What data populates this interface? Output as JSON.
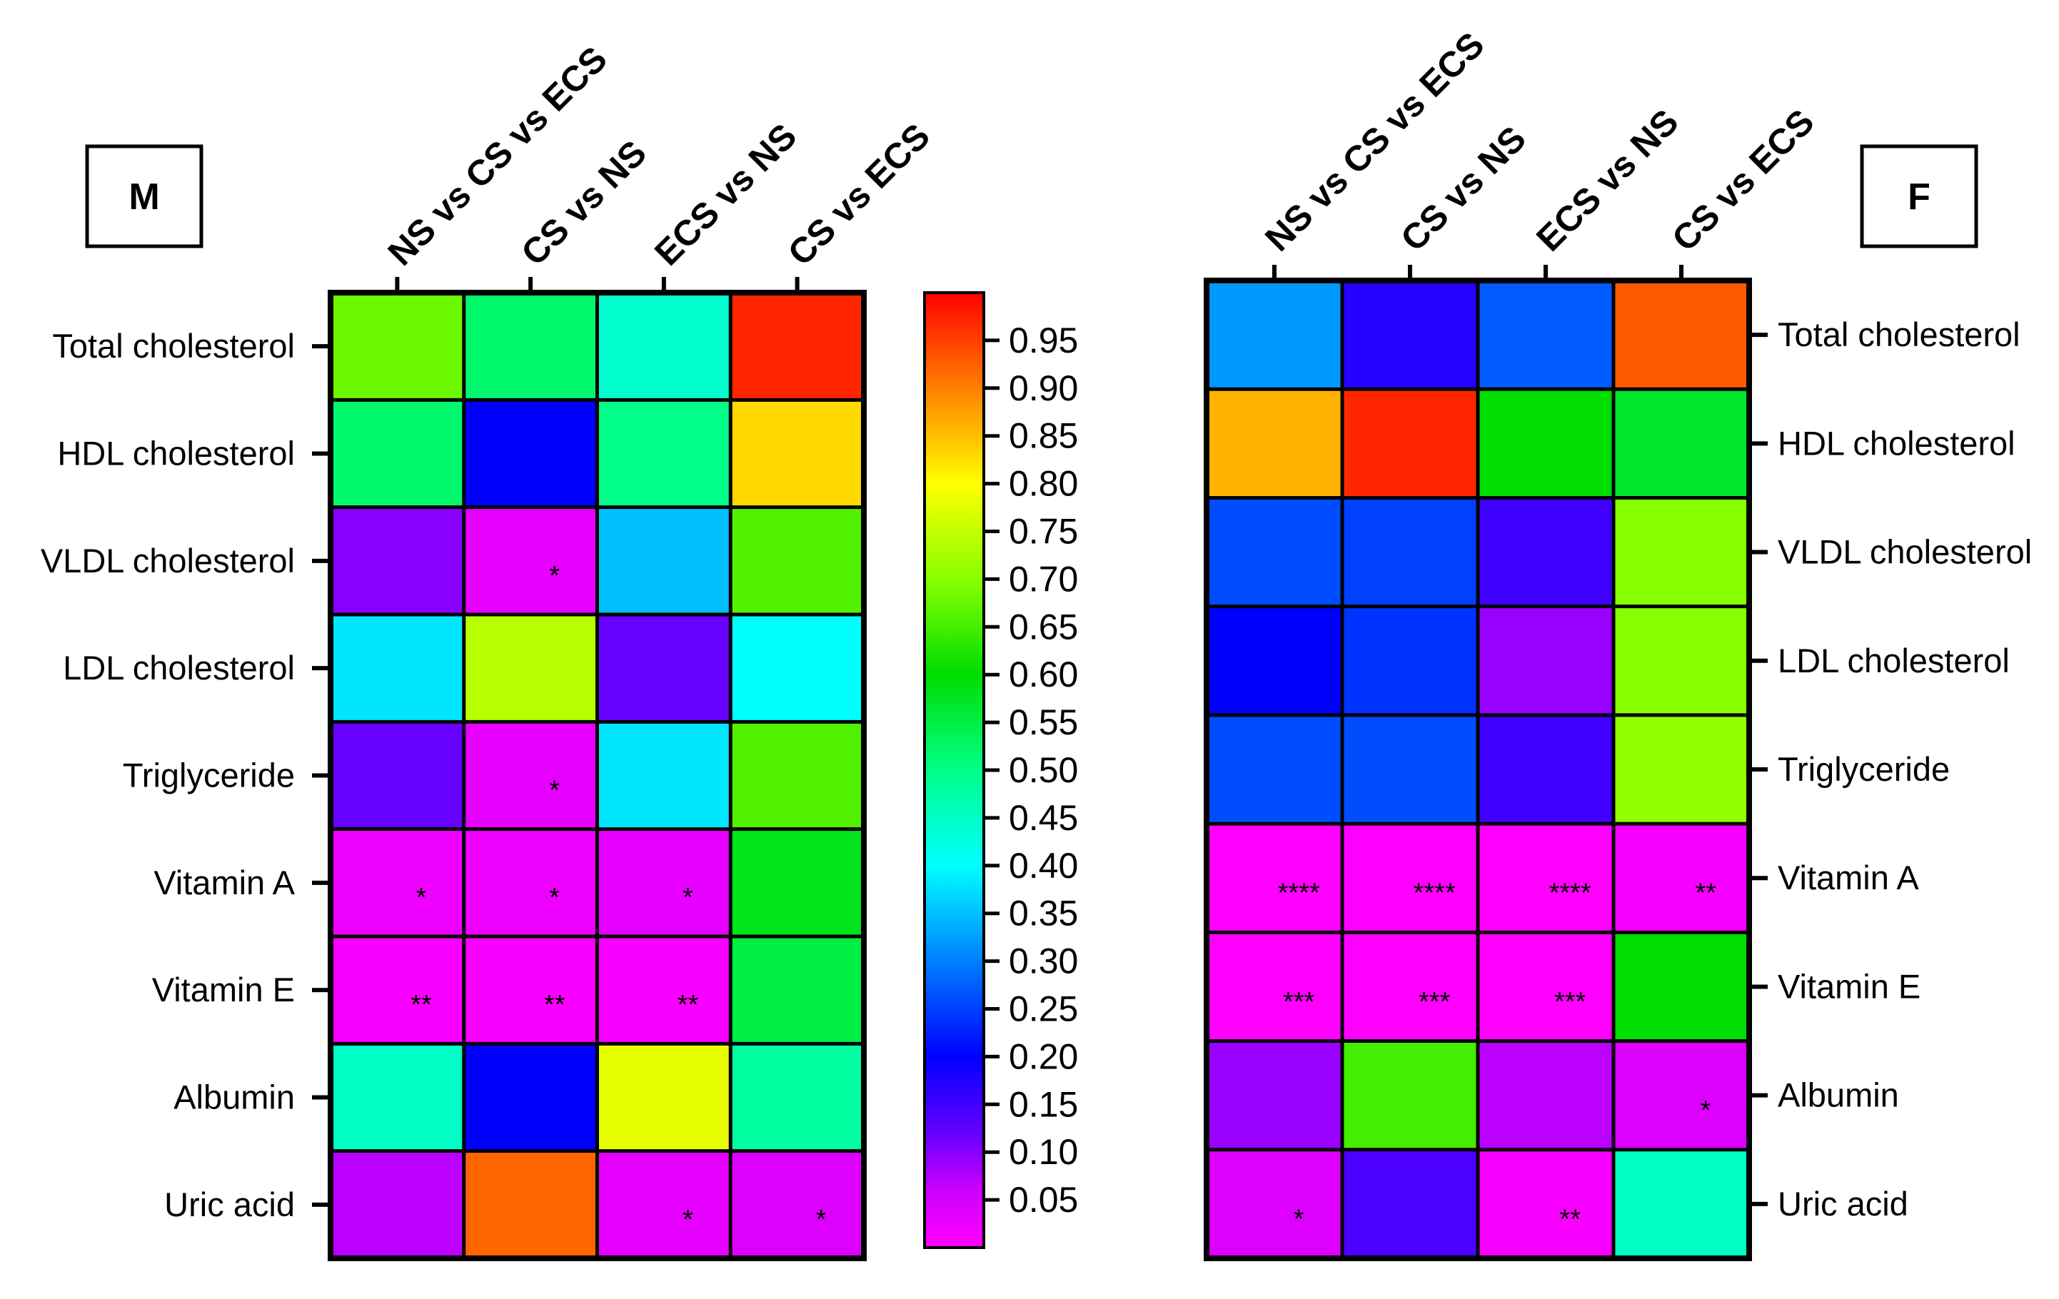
{
  "chart_data": [
    {
      "type": "heatmap",
      "panel_label": "M",
      "columns": [
        "NS vs CS vs ECS",
        "CS vs NS",
        "ECS vs NS",
        "CS vs ECS"
      ],
      "rows": [
        "Total cholesterol",
        "HDL cholesterol",
        "VLDL cholesterol",
        "LDL cholesterol",
        "Triglyceride",
        "Vitamin A",
        "Vitamin E",
        "Albumin",
        "Uric acid"
      ],
      "values": [
        [
          0.68,
          0.52,
          0.44,
          0.97
        ],
        [
          0.52,
          0.2,
          0.5,
          0.83
        ],
        [
          0.1,
          0.03,
          0.35,
          0.66
        ],
        [
          0.38,
          0.74,
          0.12,
          0.4
        ],
        [
          0.12,
          0.03,
          0.38,
          0.66
        ],
        [
          0.02,
          0.02,
          0.03,
          0.58
        ],
        [
          0.01,
          0.01,
          0.01,
          0.55
        ],
        [
          0.45,
          0.2,
          0.78,
          0.48
        ],
        [
          0.07,
          0.92,
          0.03,
          0.04
        ]
      ],
      "significance": [
        [
          "",
          "",
          "",
          ""
        ],
        [
          "",
          "",
          "",
          ""
        ],
        [
          "",
          "*",
          "",
          ""
        ],
        [
          "",
          "",
          "",
          ""
        ],
        [
          "",
          "*",
          "",
          ""
        ],
        [
          "*",
          "*",
          "*",
          ""
        ],
        [
          "**",
          "**",
          "**",
          ""
        ],
        [
          "",
          "",
          "",
          ""
        ],
        [
          "",
          "",
          "*",
          "*"
        ]
      ]
    },
    {
      "type": "heatmap",
      "panel_label": "F",
      "columns": [
        "NS vs CS vs ECS",
        "CS vs NS",
        "ECS vs NS",
        "CS vs ECS"
      ],
      "rows": [
        "Total cholesterol",
        "HDL cholesterol",
        "VLDL cholesterol",
        "LDL cholesterol",
        "Triglyceride",
        "Vitamin A",
        "Vitamin E",
        "Albumin",
        "Uric acid"
      ],
      "values": [
        [
          0.32,
          0.17,
          0.27,
          0.93
        ],
        [
          0.86,
          0.97,
          0.6,
          0.57
        ],
        [
          0.26,
          0.25,
          0.15,
          0.7
        ],
        [
          0.2,
          0.24,
          0.09,
          0.7
        ],
        [
          0.26,
          0.26,
          0.15,
          0.71
        ],
        [
          0.0,
          0.0,
          0.0,
          0.01
        ],
        [
          0.0,
          0.0,
          0.0,
          0.6
        ],
        [
          0.09,
          0.65,
          0.07,
          0.04
        ],
        [
          0.04,
          0.14,
          0.01,
          0.45
        ]
      ],
      "significance": [
        [
          "",
          "",
          "",
          ""
        ],
        [
          "",
          "",
          "",
          ""
        ],
        [
          "",
          "",
          "",
          ""
        ],
        [
          "",
          "",
          "",
          ""
        ],
        [
          "",
          "",
          "",
          ""
        ],
        [
          "****",
          "****",
          "****",
          "**"
        ],
        [
          "***",
          "***",
          "***",
          ""
        ],
        [
          "",
          "",
          "",
          "*"
        ],
        [
          "*",
          "",
          "**",
          ""
        ]
      ]
    }
  ],
  "colorbar": {
    "ticks": [
      "0.95",
      "0.90",
      "0.85",
      "0.80",
      "0.75",
      "0.70",
      "0.65",
      "0.60",
      "0.55",
      "0.50",
      "0.45",
      "0.40",
      "0.35",
      "0.30",
      "0.25",
      "0.20",
      "0.15",
      "0.10",
      "0.05"
    ],
    "range": [
      0.0,
      1.0
    ],
    "stops": [
      {
        "value": 0.0,
        "color": "#ff00ff"
      },
      {
        "value": 0.06,
        "color": "#cc00ff"
      },
      {
        "value": 0.12,
        "color": "#6600ff"
      },
      {
        "value": 0.2,
        "color": "#0000ff"
      },
      {
        "value": 0.3,
        "color": "#0080ff"
      },
      {
        "value": 0.4,
        "color": "#00ffff"
      },
      {
        "value": 0.5,
        "color": "#00ff88"
      },
      {
        "value": 0.6,
        "color": "#00dd00"
      },
      {
        "value": 0.7,
        "color": "#88ff00"
      },
      {
        "value": 0.8,
        "color": "#ffff00"
      },
      {
        "value": 0.88,
        "color": "#ff9900"
      },
      {
        "value": 1.0,
        "color": "#ff0000"
      }
    ]
  }
}
